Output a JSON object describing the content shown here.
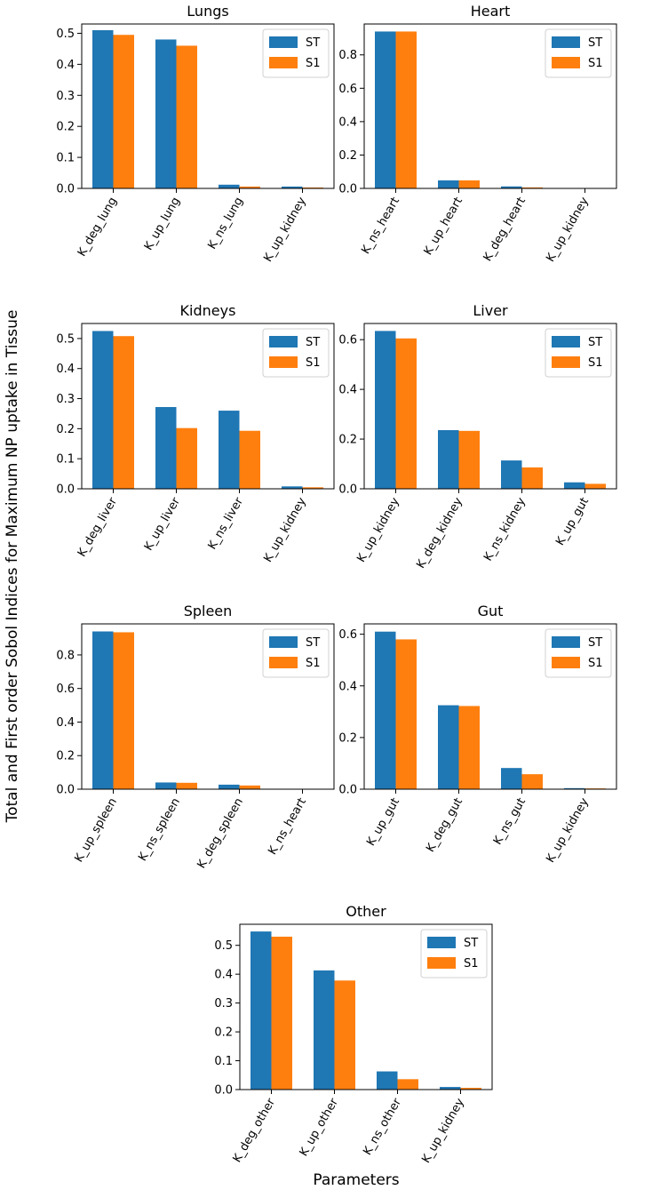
{
  "figure": {
    "ylabel": "Total and First order Sobol Indices for Maximum NP uptake in Tissue",
    "xlabel": "Parameters"
  },
  "legend": {
    "labels": [
      "ST",
      "S1"
    ]
  },
  "colors": {
    "ST": "#1f77b4",
    "S1": "#ff7f0e"
  },
  "chart_data": [
    {
      "type": "bar",
      "title": "Lungs",
      "categories": [
        "K_deg_lung",
        "K_up_lung",
        "K_ns_lung",
        "K_up_kidney"
      ],
      "series": [
        {
          "name": "ST",
          "values": [
            0.51,
            0.48,
            0.012,
            0.006
          ]
        },
        {
          "name": "S1",
          "values": [
            0.495,
            0.46,
            0.006,
            0.003
          ]
        }
      ],
      "ylim": [
        0,
        0.53
      ],
      "yticks": [
        0.0,
        0.1,
        0.2,
        0.3,
        0.4,
        0.5
      ],
      "ytick_labels": [
        "0.0",
        "0.1",
        "0.2",
        "0.3",
        "0.4",
        "0.5"
      ],
      "legend": "top-right"
    },
    {
      "type": "bar",
      "title": "Heart",
      "categories": [
        "K_ns_heart",
        "K_up_heart",
        "K_deg_heart",
        "K_up_kidney"
      ],
      "series": [
        {
          "name": "ST",
          "values": [
            0.94,
            0.048,
            0.012,
            0.001
          ]
        },
        {
          "name": "S1",
          "values": [
            0.94,
            0.048,
            0.006,
            0.0005
          ]
        }
      ],
      "ylim": [
        0,
        0.985
      ],
      "yticks": [
        0.0,
        0.2,
        0.4,
        0.6,
        0.8
      ],
      "ytick_labels": [
        "0.0",
        "0.2",
        "0.4",
        "0.6",
        "0.8"
      ],
      "legend": "top-right"
    },
    {
      "type": "bar",
      "title": "Kidneys",
      "categories": [
        "K_deg_liver",
        "K_up_liver",
        "K_ns_liver",
        "K_up_kidney"
      ],
      "series": [
        {
          "name": "ST",
          "values": [
            0.525,
            0.272,
            0.26,
            0.008
          ]
        },
        {
          "name": "S1",
          "values": [
            0.508,
            0.202,
            0.193,
            0.005
          ]
        }
      ],
      "ylim": [
        0,
        0.55
      ],
      "yticks": [
        0.0,
        0.1,
        0.2,
        0.3,
        0.4,
        0.5
      ],
      "ytick_labels": [
        "0.0",
        "0.1",
        "0.2",
        "0.3",
        "0.4",
        "0.5"
      ],
      "legend": "top-right"
    },
    {
      "type": "bar",
      "title": "Liver",
      "categories": [
        "K_up_kidney",
        "K_deg_kidney",
        "K_ns_kidney",
        "K_up_gut"
      ],
      "series": [
        {
          "name": "ST",
          "values": [
            0.635,
            0.236,
            0.114,
            0.026
          ]
        },
        {
          "name": "S1",
          "values": [
            0.605,
            0.233,
            0.086,
            0.02
          ]
        }
      ],
      "ylim": [
        0,
        0.665
      ],
      "yticks": [
        0.0,
        0.2,
        0.4,
        0.6
      ],
      "ytick_labels": [
        "0.0",
        "0.2",
        "0.4",
        "0.6"
      ],
      "legend": "top-right"
    },
    {
      "type": "bar",
      "title": "Spleen",
      "categories": [
        "K_up_spleen",
        "K_ns_spleen",
        "K_deg_spleen",
        "K_ns_heart"
      ],
      "series": [
        {
          "name": "ST",
          "values": [
            0.94,
            0.04,
            0.027,
            0.001
          ]
        },
        {
          "name": "S1",
          "values": [
            0.935,
            0.038,
            0.022,
            0.0005
          ]
        }
      ],
      "ylim": [
        0,
        0.985
      ],
      "yticks": [
        0.0,
        0.2,
        0.4,
        0.6,
        0.8
      ],
      "ytick_labels": [
        "0.0",
        "0.2",
        "0.4",
        "0.6",
        "0.8"
      ],
      "legend": "top-right"
    },
    {
      "type": "bar",
      "title": "Gut",
      "categories": [
        "K_up_gut",
        "K_deg_gut",
        "K_ns_gut",
        "K_up_kidney"
      ],
      "series": [
        {
          "name": "ST",
          "values": [
            0.61,
            0.325,
            0.082,
            0.004
          ]
        },
        {
          "name": "S1",
          "values": [
            0.58,
            0.322,
            0.058,
            0.003
          ]
        }
      ],
      "ylim": [
        0,
        0.64
      ],
      "yticks": [
        0.0,
        0.2,
        0.4,
        0.6
      ],
      "ytick_labels": [
        "0.0",
        "0.2",
        "0.4",
        "0.6"
      ],
      "legend": "top-right"
    },
    {
      "type": "bar",
      "title": "Other",
      "categories": [
        "K_deg_other",
        "K_up_other",
        "K_ns_other",
        "K_up_kidney"
      ],
      "series": [
        {
          "name": "ST",
          "values": [
            0.548,
            0.413,
            0.063,
            0.009
          ]
        },
        {
          "name": "S1",
          "values": [
            0.53,
            0.378,
            0.036,
            0.006
          ]
        }
      ],
      "ylim": [
        0,
        0.573
      ],
      "yticks": [
        0.0,
        0.1,
        0.2,
        0.3,
        0.4,
        0.5
      ],
      "ytick_labels": [
        "0.0",
        "0.1",
        "0.2",
        "0.3",
        "0.4",
        "0.5"
      ],
      "legend": "top-right"
    }
  ]
}
